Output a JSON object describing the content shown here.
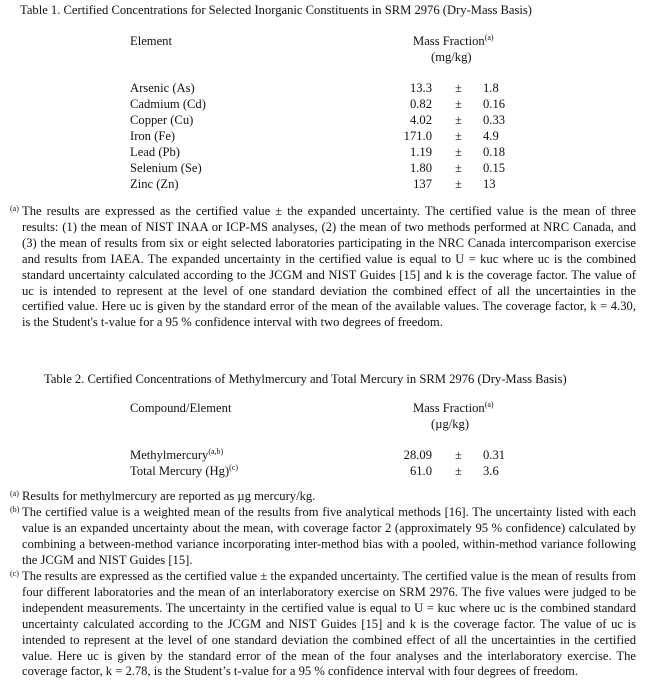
{
  "table1": {
    "title": "Table 1.  Certified Concentrations for Selected Inorganic Constituents in SRM 2976 (Dry-Mass Basis)",
    "col_element": "Element",
    "col_mass": "Mass Fraction",
    "col_mass_sup": "(a)",
    "col_unit": "(mg/kg)",
    "pm": "±",
    "rows": [
      {
        "name": "Arsenic (As)",
        "value": "13.3",
        "unc": "1.8"
      },
      {
        "name": "Cadmium (Cd)",
        "value": "0.82",
        "unc": "0.16"
      },
      {
        "name": "Copper (Cu)",
        "value": "4.02",
        "unc": "0.33"
      },
      {
        "name": "Iron (Fe)",
        "value": "171.0",
        "unc": "4.9"
      },
      {
        "name": "Lead (Pb)",
        "value": "1.19",
        "unc": "0.18"
      },
      {
        "name": "Selenium (Se)",
        "value": "1.80",
        "unc": "0.15"
      },
      {
        "name": "Zinc (Zn)",
        "value": "137",
        "unc": "13"
      }
    ],
    "footnotes": [
      {
        "marker": "(a)",
        "text": "The results are expressed as the certified value ± the expanded uncertainty.  The certified value is the mean of three results: (1) the mean of NIST INAA or ICP-MS analyses, (2) the mean of two methods performed at NRC Canada, and (3) the mean of results from six or eight selected laboratories participating in the NRC Canada intercomparison exercise and results from IAEA. The expanded uncertainty in the certified value is equal to U = kuc where uc is the combined standard uncertainty calculated according to the JCGM and NIST Guides [15] and  k is the coverage factor.  The value of uc is intended to represent at the level of one standard deviation the combined effect of all the uncertainties in the certified value. Here uc is given by the standard error of the mean of the available values.  The coverage factor, k = 4.30, is the Student's t-value for a 95 % confidence interval with two degrees of freedom."
      }
    ]
  },
  "table2": {
    "title": "Table 2.  Certified Concentrations of Methylmercury and Total Mercury in SRM 2976 (Dry-Mass Basis)",
    "col_element": "Compound/Element",
    "col_mass": "Mass Fraction",
    "col_mass_sup": "(a)",
    "col_unit": "(µg/kg)",
    "pm": "±",
    "rows": [
      {
        "name": "Methylmercury",
        "sup": "(a,b)",
        "value": "28.09",
        "unc": "0.31"
      },
      {
        "name": "Total Mercury (Hg)",
        "sup": "(c)",
        "value": "61.0",
        "unc": "3.6"
      }
    ],
    "footnotes": [
      {
        "marker": "(a)",
        "text": "Results for methylmercury are reported as µg mercury/kg."
      },
      {
        "marker": "(b)",
        "text": "The certified value is a weighted mean of the results from five analytical methods [16].  The uncertainty listed with each value is an expanded uncertainty about the mean, with coverage factor 2 (approximately 95 % confidence) calculated by combining a between-method variance incorporating inter-method bias with a pooled, within-method variance following the JCGM and NIST Guides [15]."
      },
      {
        "marker": "(c)",
        "text": "The results are expressed as the certified value ± the expanded uncertainty.  The certified value is the mean of results from four different laboratories and the mean of an interlaboratory exercise on SRM 2976. The five values were judged to be independent measurements. The uncertainty in the certified value is equal to U = kuc where uc is the combined standard uncertainty calculated according to the JCGM and NIST Guides [15] and k is the coverage factor.  The value of uc is intended to represent at the level of one standard deviation the combined effect of all the uncertainties in the certified value. Here uc is given by the standard error of the mean of the four analyses and the interlaboratory exercise. The coverage factor, k = 2.78, is the Student’s t-value for a 95 % confidence interval with four degrees of freedom."
      }
    ]
  }
}
